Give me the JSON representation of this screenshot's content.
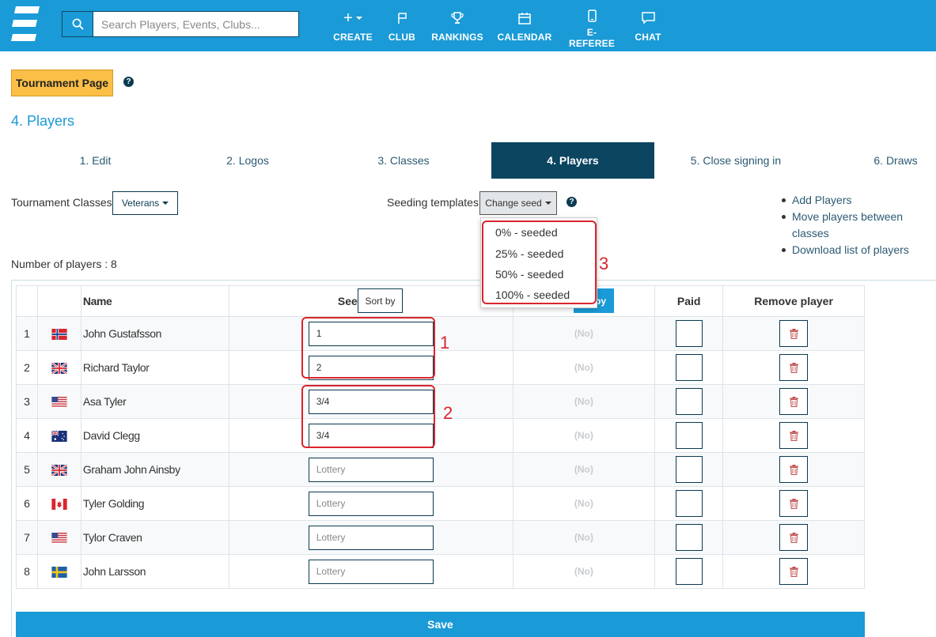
{
  "header": {
    "search_placeholder": "Search Players, Events, Clubs...",
    "nav": [
      {
        "label": "CREATE",
        "icon": "plus-icon"
      },
      {
        "label": "CLUB",
        "icon": "flag-icon"
      },
      {
        "label": "RANKINGS",
        "icon": "trophy-icon"
      },
      {
        "label": "CALENDAR",
        "icon": "calendar-icon"
      },
      {
        "label": "E-REFEREE",
        "icon": "mobile-icon"
      },
      {
        "label": "CHAT",
        "icon": "chat-icon"
      }
    ],
    "brand_color": "#1a9ad6"
  },
  "tournament_button": "Tournament Page",
  "section_title": "4. Players",
  "tabs": [
    {
      "label": "1. Edit"
    },
    {
      "label": "2. Logos"
    },
    {
      "label": "3. Classes"
    },
    {
      "label": "4. Players",
      "active": true
    },
    {
      "label": "5. Close signing in"
    },
    {
      "label": "6. Draws"
    }
  ],
  "classes": {
    "label": "Tournament Classes:",
    "value": "Veterans"
  },
  "seeding": {
    "label": "Seeding templates:",
    "button": "Change seed"
  },
  "links": [
    "Add Players",
    "Move players between classes",
    "Download list of players"
  ],
  "dropdown": {
    "options": [
      "0% - seeded",
      "25% - seeded",
      "50% - seeded",
      "100% - seeded"
    ]
  },
  "annotations": [
    "1",
    "2",
    "3"
  ],
  "players_count": "Number of players : 8",
  "table": {
    "headers": {
      "name": "Name",
      "seed": "Seed",
      "sort_tip": "Sort by",
      "sort_blue": "by",
      "paid": "Paid",
      "remove": "Remove player"
    },
    "rows": [
      {
        "num": "1",
        "flag": "norway",
        "name": "John Gustafsson",
        "seed": "1",
        "status": "(No)"
      },
      {
        "num": "2",
        "flag": "uk",
        "name": "Richard Taylor",
        "seed": "2",
        "status": "(No)"
      },
      {
        "num": "3",
        "flag": "usa",
        "name": "Asa Tyler",
        "seed": "3/4",
        "status": "(No)"
      },
      {
        "num": "4",
        "flag": "australia",
        "name": "David Clegg",
        "seed": "3/4",
        "status": "(No)"
      },
      {
        "num": "5",
        "flag": "uk",
        "name": "Graham John Ainsby",
        "seed": "",
        "status": "(No)"
      },
      {
        "num": "6",
        "flag": "canada",
        "name": "Tyler Golding",
        "seed": "",
        "status": "(No)"
      },
      {
        "num": "7",
        "flag": "usa",
        "name": "Tylor Craven",
        "seed": "",
        "status": "(No)"
      },
      {
        "num": "8",
        "flag": "sweden",
        "name": "John Larsson",
        "seed": "",
        "status": "(No)"
      }
    ],
    "seed_placeholder": "Lottery"
  },
  "save_label": "Save"
}
